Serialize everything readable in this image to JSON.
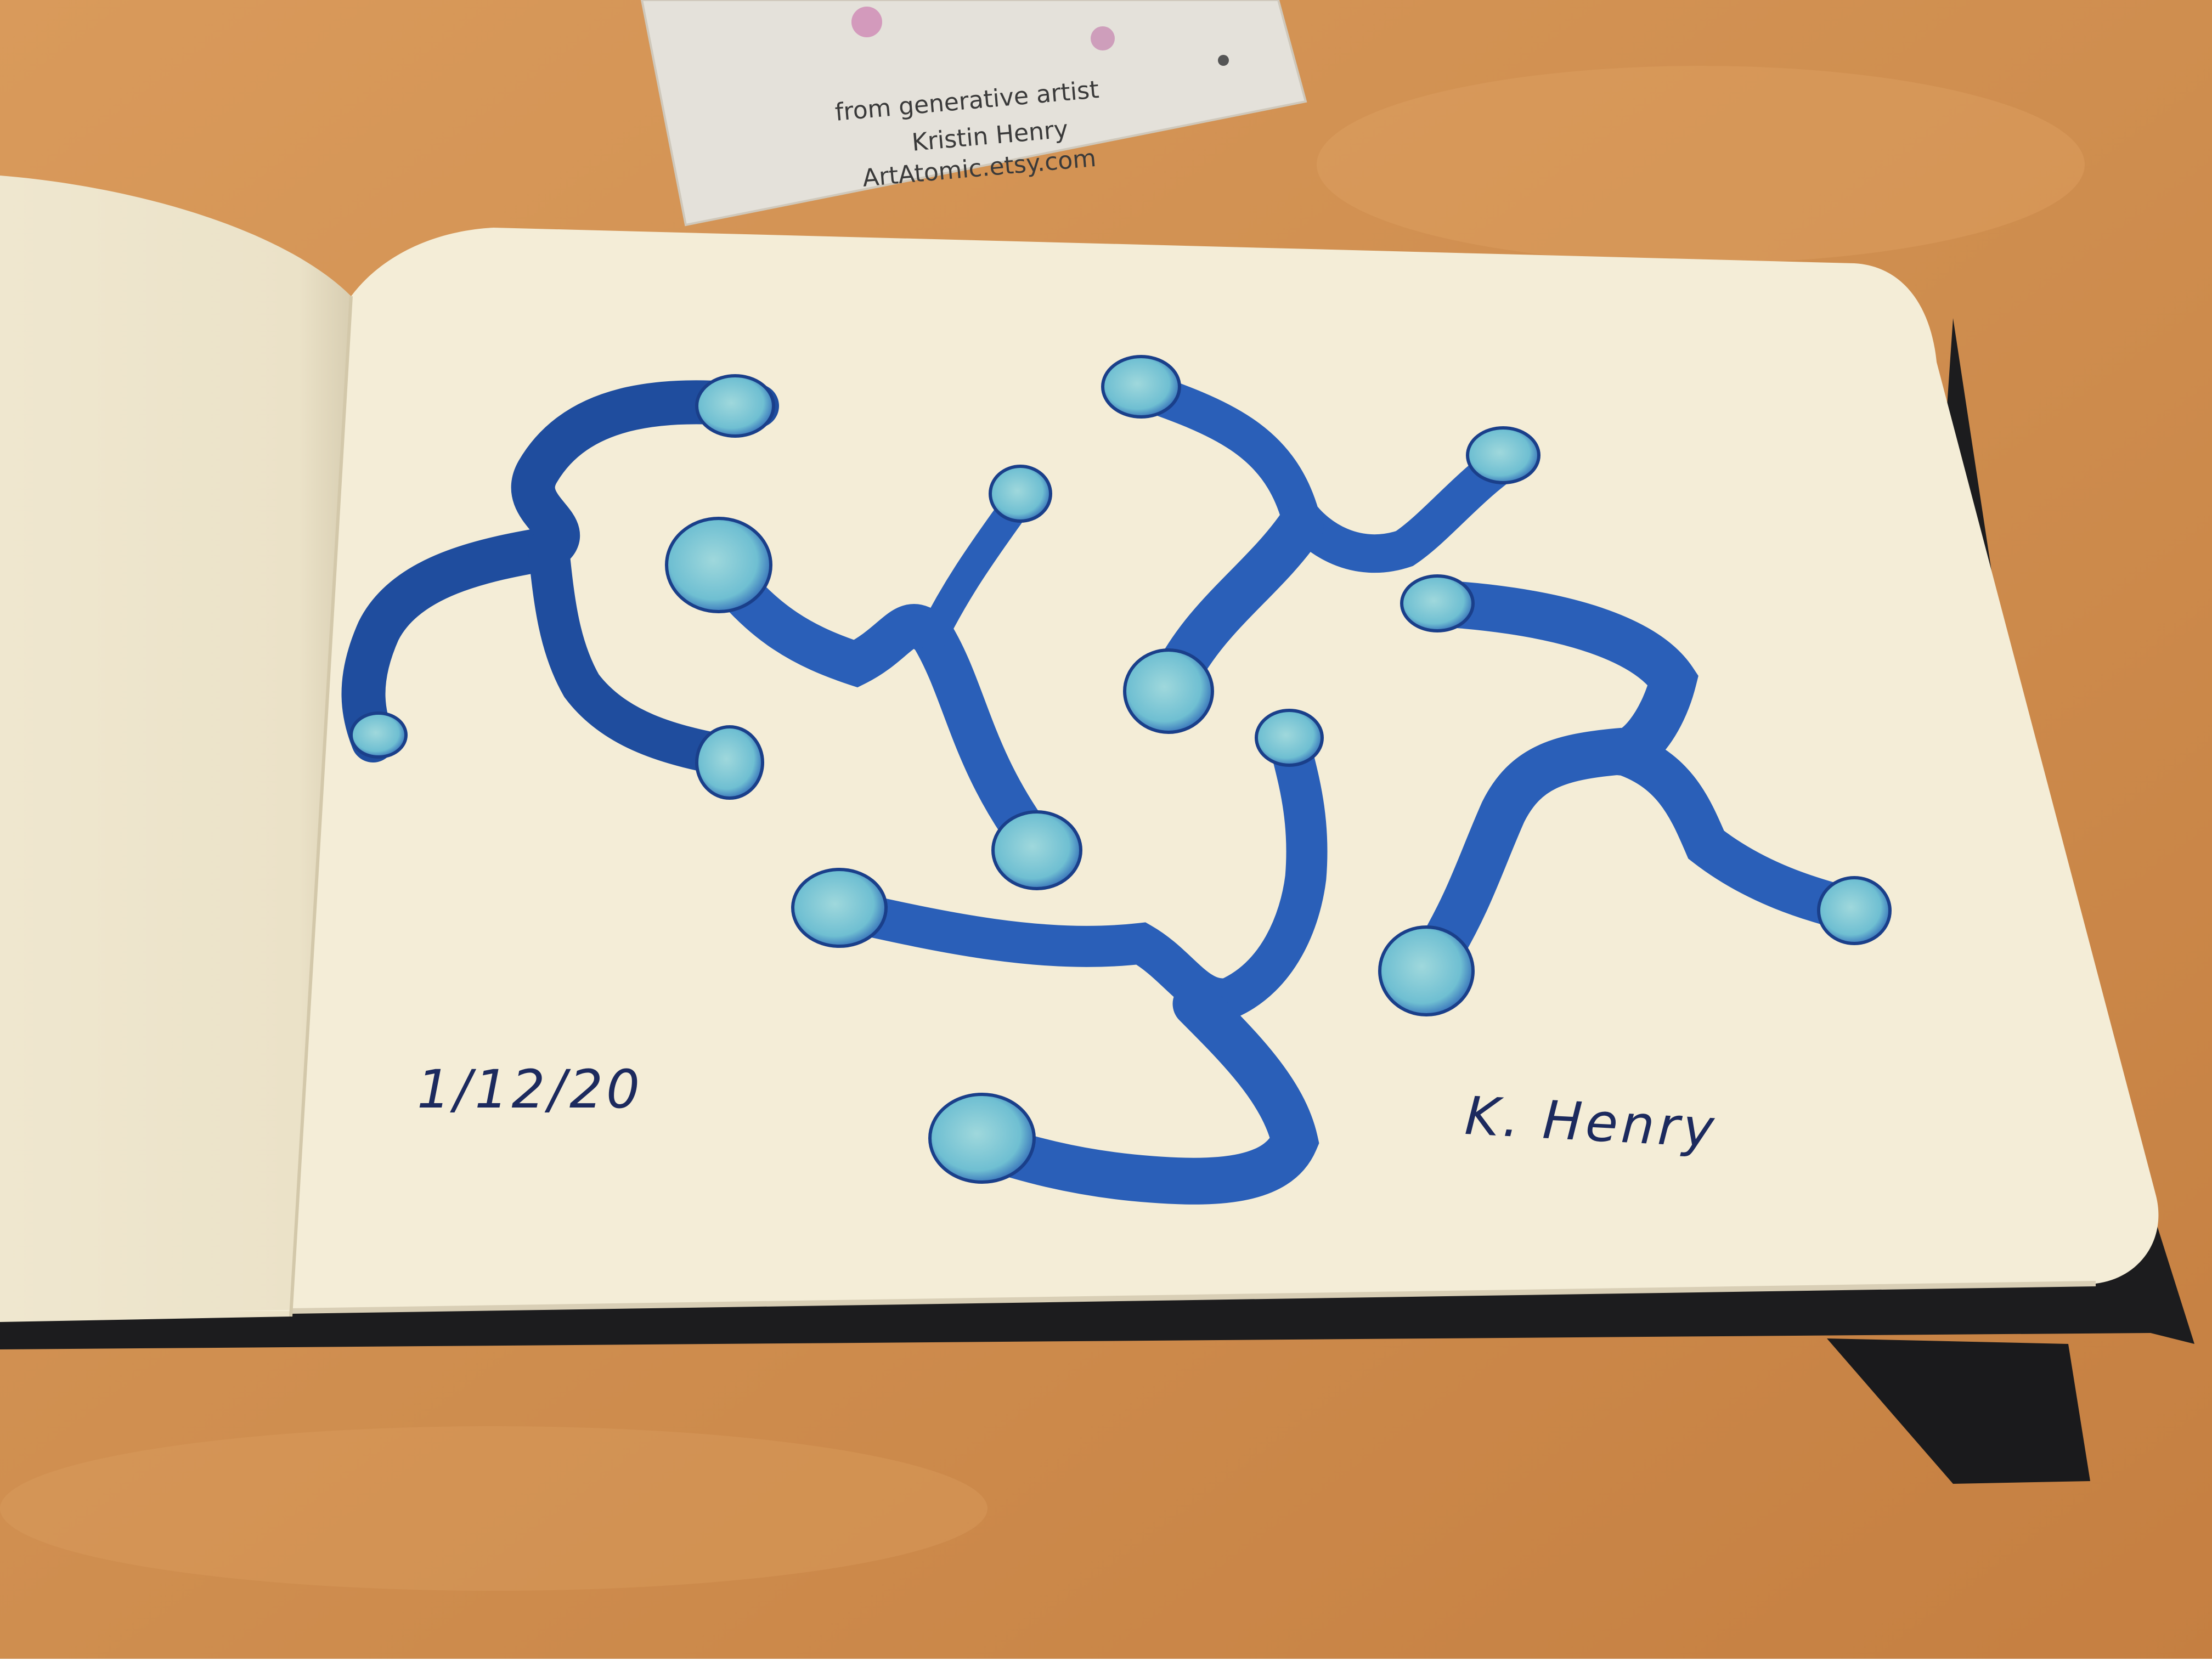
{
  "business_card": {
    "line1": "from generative artist",
    "line2": "Kristin Henry",
    "line3": "ArtAtomic.etsy.com"
  },
  "sketch": {
    "date": "1/12/20",
    "signature": "K. Henry"
  },
  "colors": {
    "table": "#d9995c",
    "paper": "#f3ecd6",
    "ink_blue": "#2a5fb8",
    "ink_light": "#7ec6d6",
    "cover": "#1d1d1f"
  }
}
